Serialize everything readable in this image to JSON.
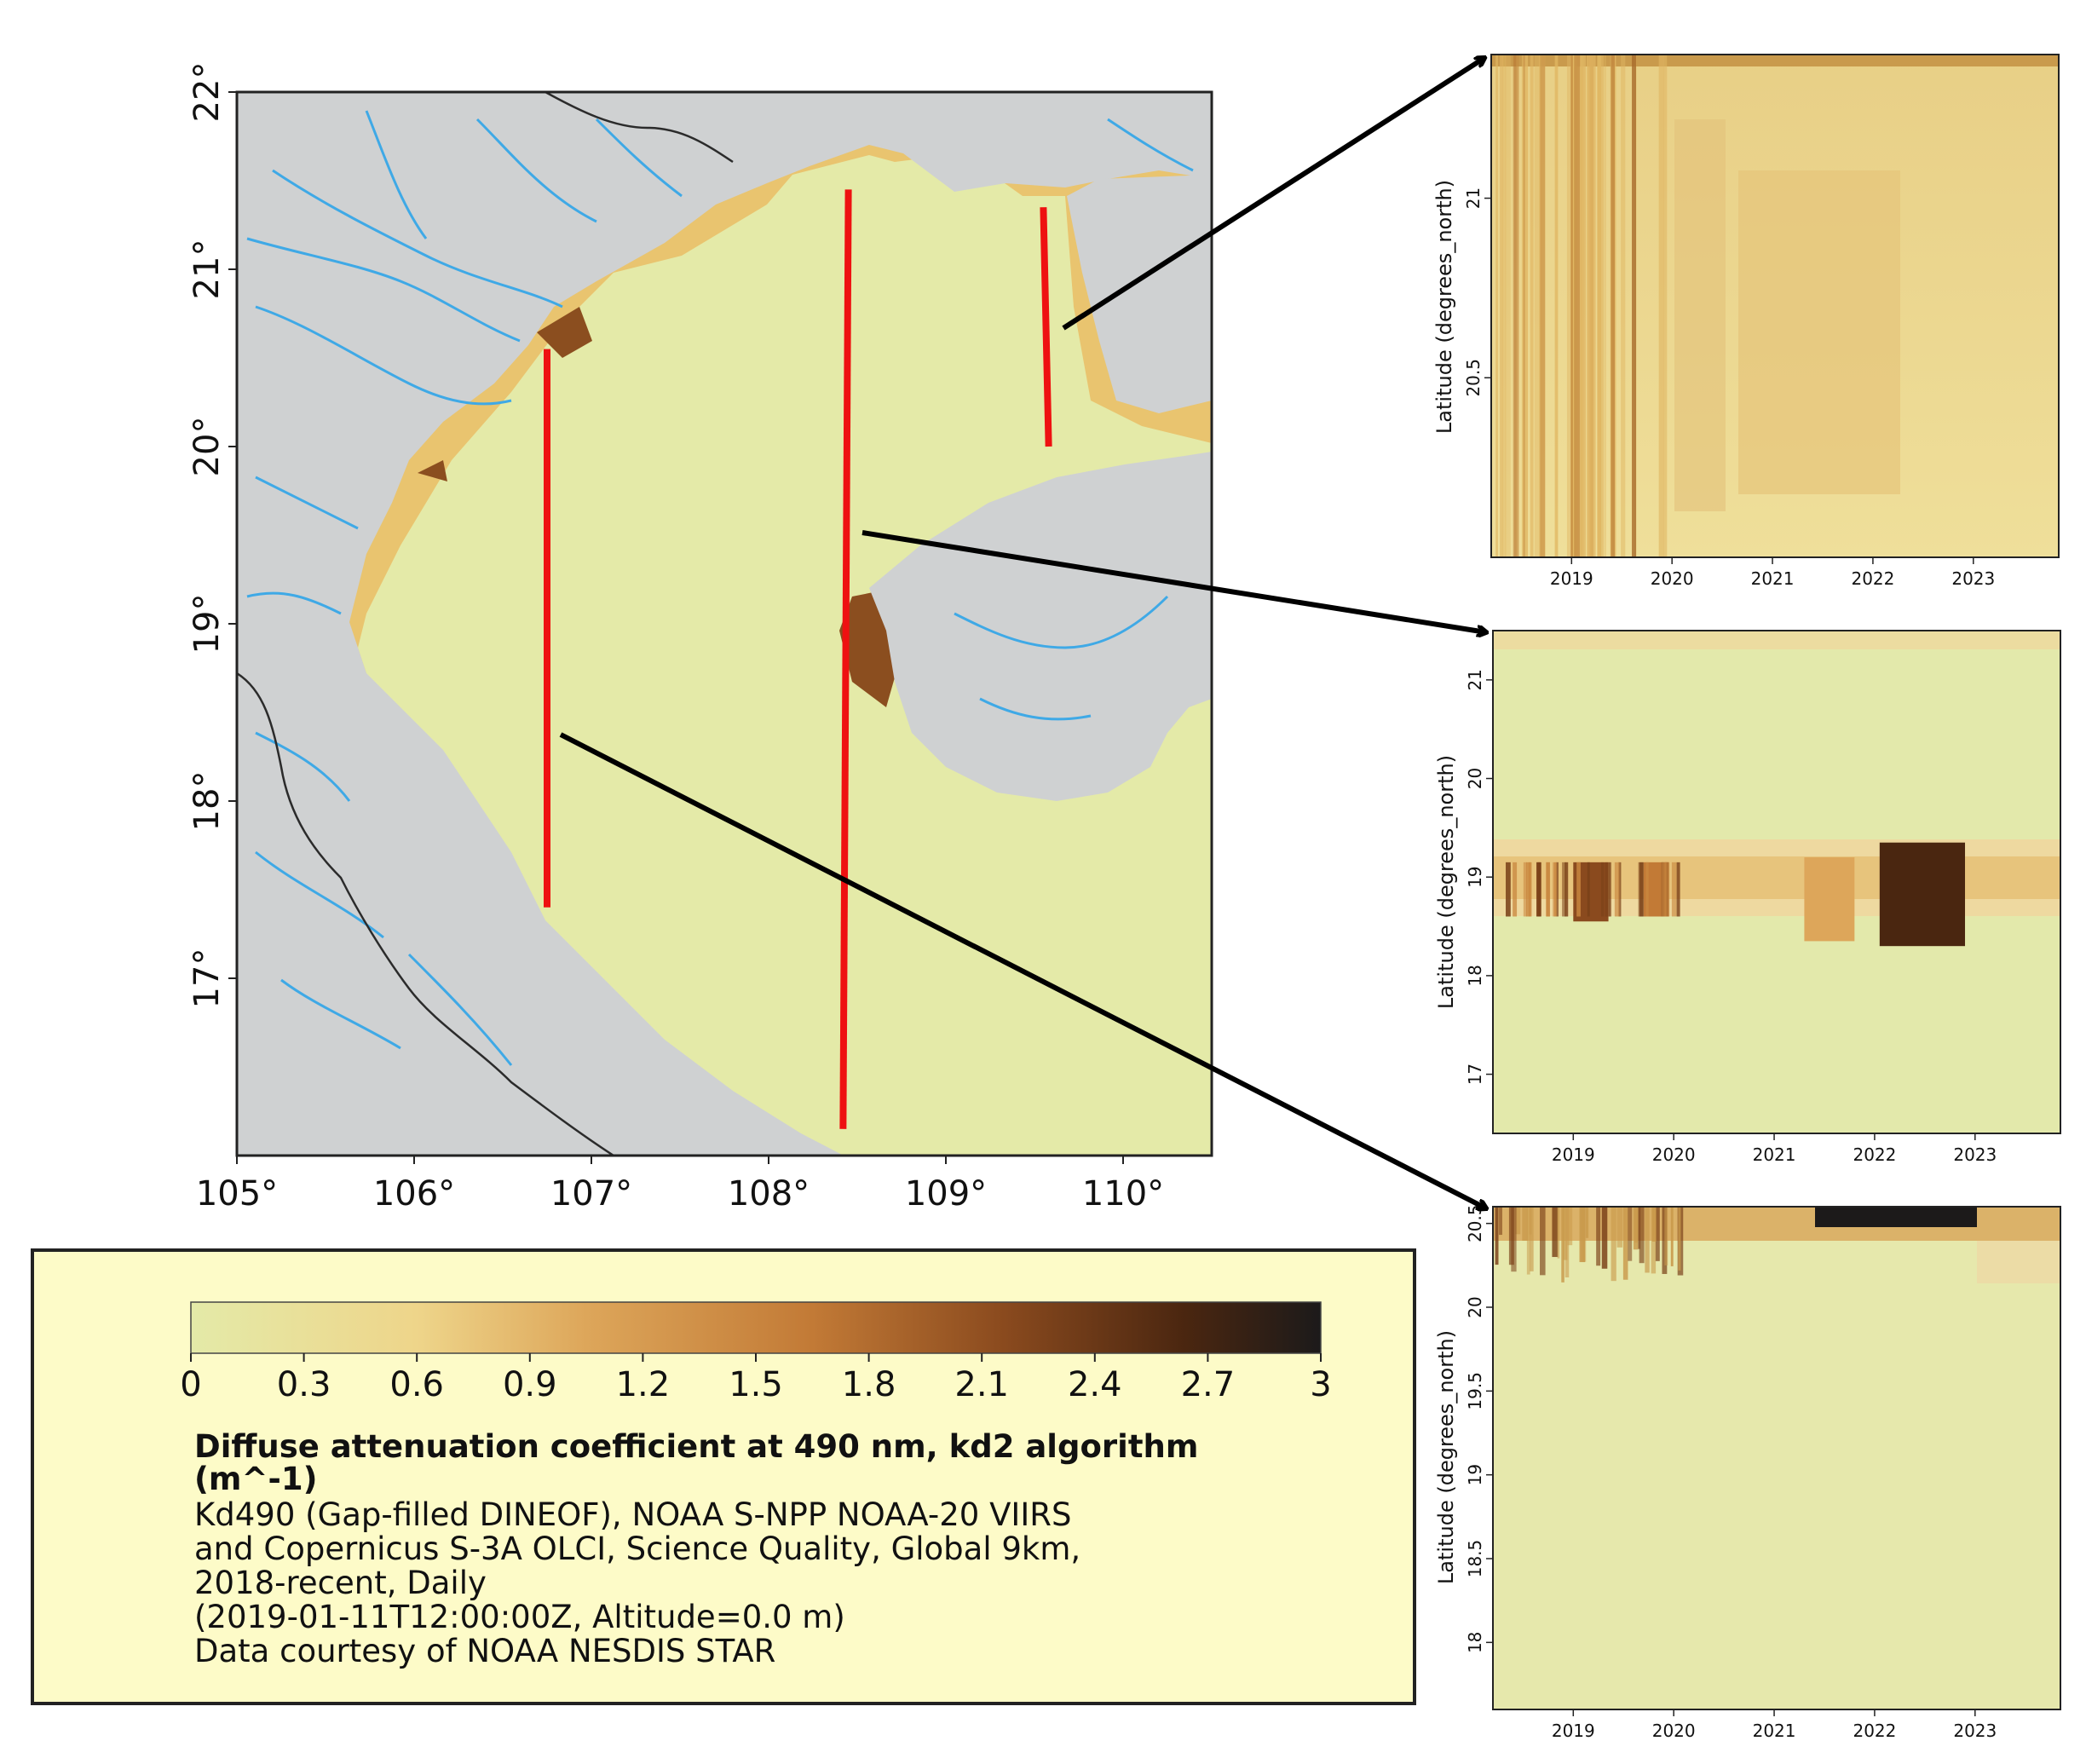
{
  "chart_data": [
    {
      "type": "heatmap",
      "id": "map",
      "x_tick_labels": [
        "105°",
        "106°",
        "107°",
        "108°",
        "109°",
        "110°"
      ],
      "y_tick_labels": [
        "17°",
        "18°",
        "19°",
        "20°",
        "21°",
        "22°"
      ],
      "xlim": [
        105,
        110.5
      ],
      "ylim": [
        16,
        22
      ],
      "transects": [
        {
          "lon": [
            106.75,
            106.75
          ],
          "lat": [
            20.55,
            17.4
          ]
        },
        {
          "lon": [
            108.45,
            108.42
          ],
          "lat": [
            21.45,
            16.15
          ]
        },
        {
          "lon": [
            109.55,
            109.58
          ],
          "lat": [
            21.35,
            20.0
          ]
        }
      ],
      "colors": {
        "land": "#cfd1d2",
        "water_low": "#e4eaa8",
        "transect": "#ee1111",
        "river": "#3fa9e6",
        "border": "#2b2b2b"
      }
    },
    {
      "type": "heatmap",
      "id": "hovmoller-1",
      "ylabel": "Latitude (degrees_north)",
      "x_tick_labels": [
        "2019",
        "2020",
        "2021",
        "2022",
        "2023"
      ],
      "y_tick_labels": [
        "20.5",
        "21"
      ],
      "xlim": [
        2018.2,
        2023.85
      ],
      "ylim": [
        20.0,
        21.4
      ]
    },
    {
      "type": "heatmap",
      "id": "hovmoller-2",
      "ylabel": "Latitude (degrees_north)",
      "x_tick_labels": [
        "2019",
        "2020",
        "2021",
        "2022",
        "2023"
      ],
      "y_tick_labels": [
        "17",
        "18",
        "19",
        "20",
        "21"
      ],
      "xlim": [
        2018.2,
        2023.85
      ],
      "ylim": [
        16.4,
        21.5
      ],
      "bands": [
        {
          "lat": [
            18.55,
            19.15
          ],
          "t": [
            2019.0,
            2019.35
          ],
          "kd": 1.9
        },
        {
          "lat": [
            18.6,
            19.15
          ],
          "t": [
            2019.7,
            2019.95
          ],
          "kd": 1.3
        },
        {
          "lat": [
            18.35,
            19.2
          ],
          "t": [
            2021.3,
            2021.8
          ],
          "kd": 1.2
        },
        {
          "lat": [
            18.3,
            19.35
          ],
          "t": [
            2022.05,
            2022.9
          ],
          "kd": 2.7
        }
      ]
    },
    {
      "type": "heatmap",
      "id": "hovmoller-3",
      "ylabel": "Latitude (degrees_north)",
      "x_tick_labels": [
        "2019",
        "2020",
        "2021",
        "2022",
        "2023"
      ],
      "y_tick_labels": [
        "18",
        "18.5",
        "19",
        "19.5",
        "20",
        "20.5"
      ],
      "xlim": [
        2018.2,
        2023.85
      ],
      "ylim": [
        17.6,
        20.6
      ]
    }
  ],
  "colorbar": {
    "ticks": [
      "0",
      "0.3",
      "0.6",
      "0.9",
      "1.2",
      "1.5",
      "1.8",
      "2.1",
      "2.4",
      "2.7",
      "3"
    ],
    "range": [
      0,
      3
    ],
    "stops": [
      "#e4eaa8",
      "#eed58a",
      "#dda65a",
      "#c27a36",
      "#8a4a1e",
      "#4a2610",
      "#1c1a1a"
    ]
  },
  "legend": {
    "title_line1": "Diffuse attenuation coefficient at 490 nm, kd2 algorithm",
    "title_line2": "(m^-1)",
    "lines": [
      "Kd490 (Gap-filled DINEOF), NOAA S-NPP NOAA-20 VIIRS",
      "and Copernicus S-3A OLCI, Science Quality, Global 9km,",
      "2018-recent, Daily",
      "(2019-01-11T12:00:00Z, Altitude=0.0 m)",
      "Data courtesy of NOAA NESDIS STAR"
    ]
  }
}
